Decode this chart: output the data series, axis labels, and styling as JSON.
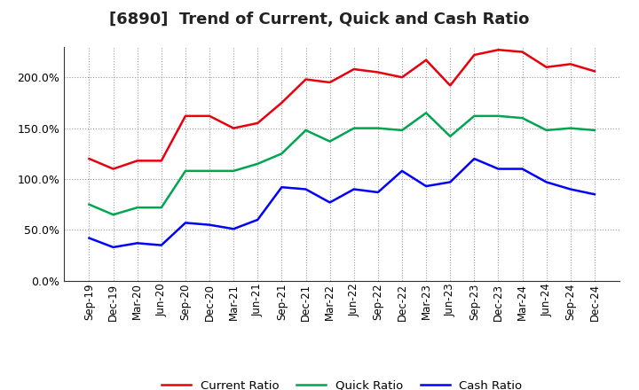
{
  "title": "[6890]  Trend of Current, Quick and Cash Ratio",
  "x_labels": [
    "Sep-19",
    "Dec-19",
    "Mar-20",
    "Jun-20",
    "Sep-20",
    "Dec-20",
    "Mar-21",
    "Jun-21",
    "Sep-21",
    "Dec-21",
    "Mar-22",
    "Jun-22",
    "Sep-22",
    "Dec-22",
    "Mar-23",
    "Jun-23",
    "Sep-23",
    "Dec-23",
    "Mar-24",
    "Jun-24",
    "Sep-24",
    "Dec-24"
  ],
  "current_ratio": [
    120,
    110,
    118,
    118,
    162,
    162,
    150,
    155,
    175,
    198,
    195,
    208,
    205,
    200,
    217,
    192,
    222,
    227,
    225,
    210,
    213,
    206
  ],
  "quick_ratio": [
    75,
    65,
    72,
    72,
    108,
    108,
    108,
    115,
    125,
    148,
    137,
    150,
    150,
    148,
    165,
    142,
    162,
    162,
    160,
    148,
    150,
    148
  ],
  "cash_ratio": [
    42,
    33,
    37,
    35,
    57,
    55,
    51,
    60,
    92,
    90,
    77,
    90,
    87,
    108,
    93,
    97,
    120,
    110,
    110,
    97,
    90,
    85
  ],
  "current_color": "#e8000d",
  "quick_color": "#00a550",
  "cash_color": "#0000ff",
  "background_color": "#ffffff",
  "plot_bg_color": "#ffffff",
  "grid_color": "#999999",
  "ylim": [
    0,
    230
  ],
  "yticks": [
    0,
    50,
    100,
    150,
    200
  ],
  "legend_labels": [
    "Current Ratio",
    "Quick Ratio",
    "Cash Ratio"
  ],
  "title_fontsize": 13,
  "tick_fontsize": 8.5,
  "ytick_fontsize": 9,
  "linewidth": 1.8
}
